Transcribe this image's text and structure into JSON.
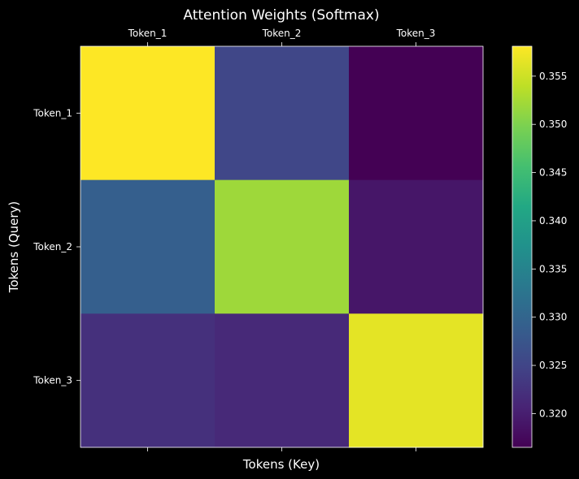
{
  "chart_data": {
    "type": "heatmap",
    "title": "Attention Weights (Softmax)",
    "xlabel": "Tokens (Key)",
    "ylabel": "Tokens (Query)",
    "x_categories": [
      "Token_1",
      "Token_2",
      "Token_3"
    ],
    "y_categories": [
      "Token_1",
      "Token_2",
      "Token_3"
    ],
    "values": [
      [
        0.3581,
        0.3253,
        0.3165
      ],
      [
        0.329,
        0.352,
        0.319
      ],
      [
        0.3222,
        0.3213,
        0.3565
      ]
    ],
    "colorbar": {
      "min": 0.3165,
      "max": 0.3581,
      "ticks": [
        "0.320",
        "0.325",
        "0.330",
        "0.335",
        "0.340",
        "0.345",
        "0.350",
        "0.355"
      ],
      "tick_values": [
        0.32,
        0.325,
        0.33,
        0.335,
        0.34,
        0.345,
        0.35,
        0.355
      ]
    },
    "colormap": "viridis",
    "grid": false,
    "x_ticks_position": "top",
    "background": "#000000",
    "foreground": "#ffffff"
  }
}
